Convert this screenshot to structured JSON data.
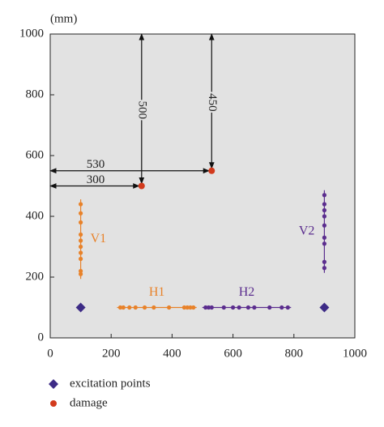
{
  "chart_data": {
    "type": "scatter",
    "unit_label": "(mm)",
    "xlim": [
      0,
      1000
    ],
    "ylim": [
      0,
      1000
    ],
    "xticks": [
      0,
      200,
      400,
      600,
      800,
      1000
    ],
    "yticks": [
      0,
      200,
      400,
      600,
      800,
      1000
    ],
    "background": "#e2e2e2",
    "series": [
      {
        "name": "excitation points",
        "color": "#3d2b86",
        "marker": "diamond",
        "x": [
          100,
          900
        ],
        "y": [
          100,
          100
        ]
      },
      {
        "name": "damage",
        "color": "#d23a1c",
        "marker": "circle",
        "x": [
          300,
          530
        ],
        "y": [
          500,
          550
        ]
      }
    ],
    "dimension_labels": {
      "horizontal": [
        "300",
        "530"
      ],
      "vertical": [
        "500",
        "450"
      ]
    },
    "sensor_lines": [
      {
        "label": "V1",
        "color": "#e8822a",
        "x": [
          100,
          100,
          100,
          100,
          100,
          100,
          100,
          100,
          100,
          100
        ],
        "y": [
          440,
          410,
          380,
          340,
          320,
          300,
          280,
          260,
          220,
          210
        ]
      },
      {
        "label": "H1",
        "color": "#e8822a",
        "x": [
          230,
          240,
          260,
          280,
          310,
          340,
          390,
          440,
          450,
          460,
          470
        ],
        "y": [
          100,
          100,
          100,
          100,
          100,
          100,
          100,
          100,
          100,
          100,
          100
        ]
      },
      {
        "label": "H2",
        "color": "#5b2d8e",
        "x": [
          510,
          520,
          530,
          570,
          600,
          620,
          650,
          670,
          720,
          760,
          780
        ],
        "y": [
          100,
          100,
          100,
          100,
          100,
          100,
          100,
          100,
          100,
          100,
          100
        ]
      },
      {
        "label": "V2",
        "color": "#5b2d8e",
        "x": [
          900,
          900,
          900,
          900,
          900,
          900,
          900,
          900,
          900
        ],
        "y": [
          470,
          440,
          420,
          400,
          370,
          330,
          310,
          250,
          230
        ]
      }
    ]
  }
}
